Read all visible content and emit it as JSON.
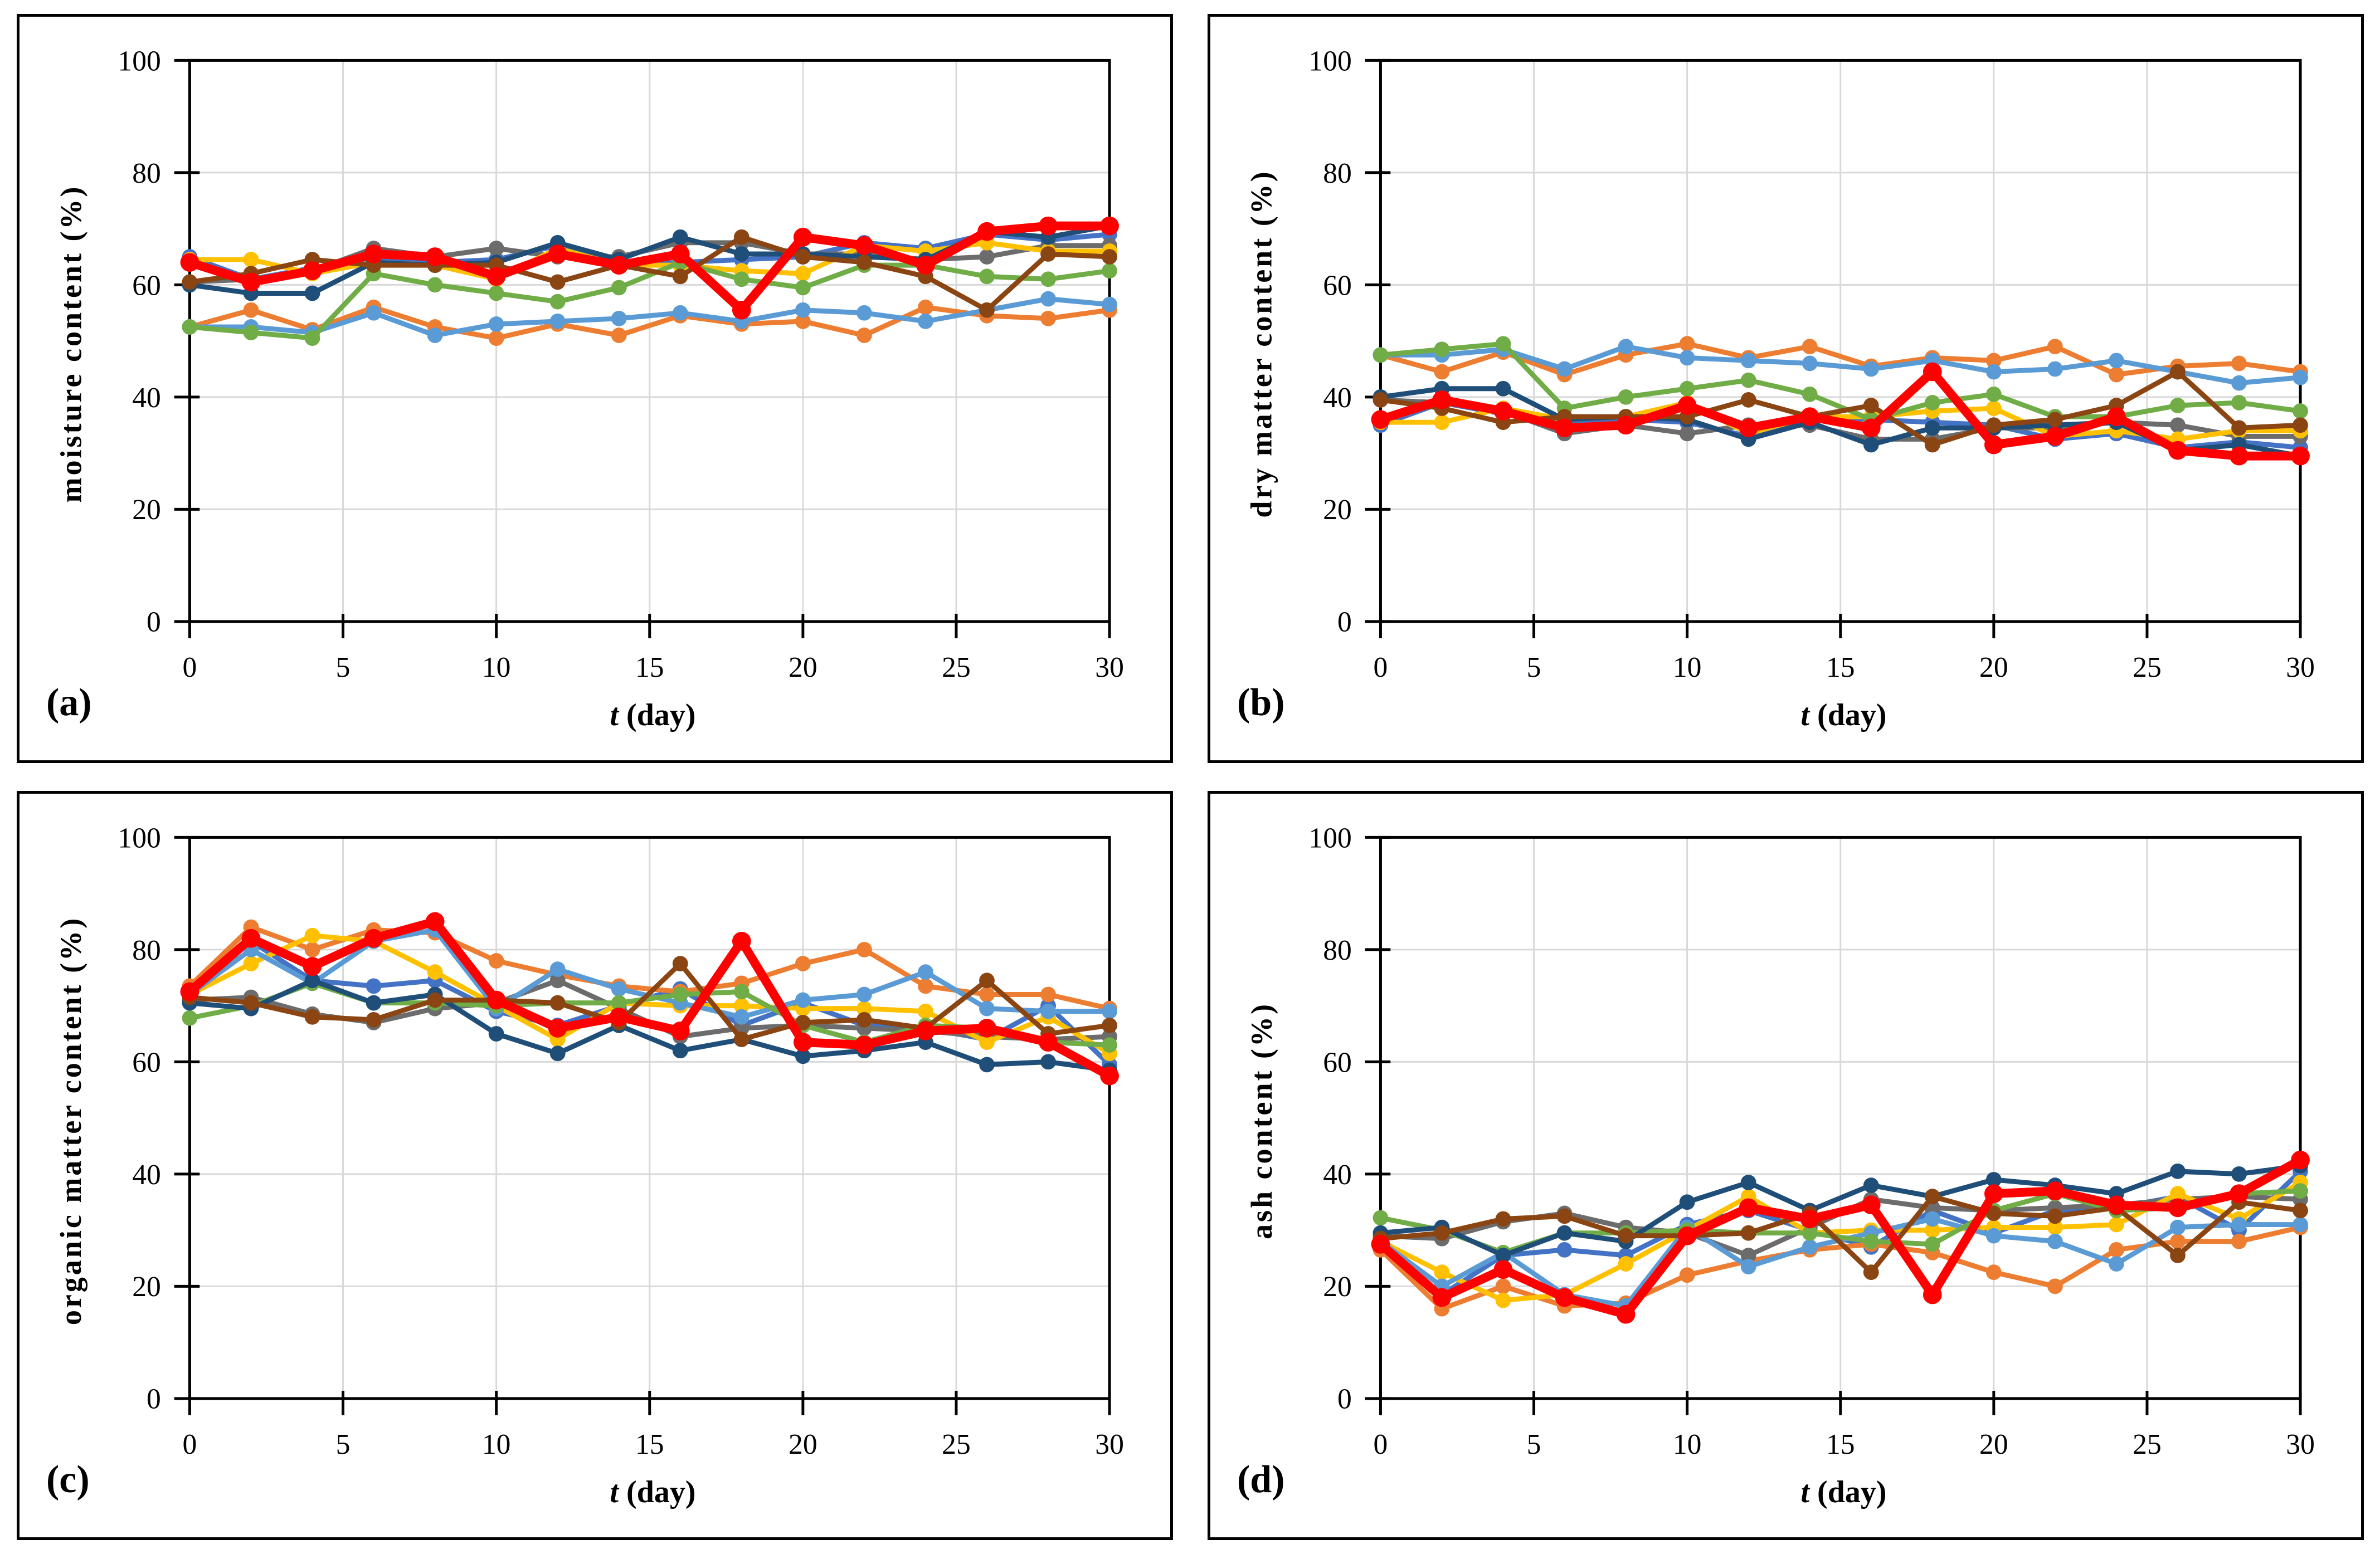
{
  "style": {
    "background": "#FFFFFF",
    "panel_border_color": "#000000",
    "axis_color": "#000000",
    "grid_color": "#D9D9D9"
  },
  "chart_data": [
    {
      "type": "line",
      "panel_label": "(a)",
      "ylabel": "moisture content (%)",
      "xlabel_italic": "t",
      "xlabel_rest": " (day)",
      "xlim": [
        0,
        30
      ],
      "ylim": [
        0,
        100
      ],
      "xticks": [
        0,
        5,
        10,
        15,
        20,
        25,
        30
      ],
      "yticks": [
        0,
        20,
        40,
        60,
        80,
        100
      ],
      "grid": true,
      "legend": "none",
      "x": [
        0,
        2,
        4,
        6,
        8,
        10,
        12,
        14,
        16,
        18,
        20,
        22,
        24,
        26,
        28,
        30
      ],
      "series": [
        {
          "color_name": "blue",
          "color": "#4472C4",
          "thick": false,
          "values": [
            65,
            61,
            63,
            64.5,
            64,
            64.5,
            67,
            63.5,
            64,
            64.5,
            65,
            67.5,
            66.5,
            69,
            68,
            69
          ]
        },
        {
          "color_name": "orange",
          "color": "#ED7D31",
          "thick": false,
          "values": [
            52.5,
            55.5,
            52,
            56,
            52.5,
            50.5,
            53,
            51,
            54.5,
            53,
            53.5,
            51,
            56,
            54.5,
            54,
            55.5
          ]
        },
        {
          "color_name": "gray",
          "color": "#6C6C6C",
          "thick": false,
          "values": [
            60.5,
            61,
            62.5,
            66.5,
            65,
            66.5,
            65,
            65,
            67.5,
            67.5,
            65.5,
            65.5,
            64.5,
            65,
            67,
            67
          ]
        },
        {
          "color_name": "gold",
          "color": "#FFC000",
          "thick": false,
          "values": [
            64.5,
            64.5,
            62,
            64,
            63.5,
            61,
            66.5,
            63.5,
            63.5,
            62.5,
            62,
            67,
            66,
            67.5,
            66,
            66
          ]
        },
        {
          "color_name": "lightblue",
          "color": "#5B9BD5",
          "thick": false,
          "values": [
            52.5,
            52.5,
            51.5,
            55,
            51,
            53,
            53.5,
            54,
            55,
            53.5,
            55.5,
            55,
            53.5,
            55.5,
            57.5,
            56.5
          ]
        },
        {
          "color_name": "green",
          "color": "#70AD47",
          "thick": false,
          "values": [
            52.5,
            51.5,
            50.5,
            62,
            60,
            58.5,
            57,
            59.5,
            64,
            61,
            59.5,
            63.5,
            63.5,
            61.5,
            61,
            62.5
          ]
        },
        {
          "color_name": "navy",
          "color": "#1F4E79",
          "thick": false,
          "values": [
            60,
            58.5,
            58.5,
            64,
            63.5,
            64,
            67.5,
            64.5,
            68.5,
            65.5,
            65.5,
            65,
            64.5,
            69.5,
            68.5,
            70.5
          ]
        },
        {
          "color_name": "brown",
          "color": "#8B4513",
          "thick": false,
          "values": [
            60.5,
            62,
            64.5,
            63.5,
            63.5,
            63.5,
            60.5,
            63.5,
            61.5,
            68.5,
            65,
            64,
            61.5,
            55.5,
            65.5,
            65
          ]
        },
        {
          "color_name": "red",
          "color": "#FF0000",
          "thick": true,
          "values": [
            64,
            60.5,
            62.5,
            65.5,
            65,
            61.5,
            65.5,
            63.5,
            65.5,
            55.5,
            68.5,
            67,
            63.5,
            69.5,
            70.5,
            70.5
          ]
        }
      ]
    },
    {
      "type": "line",
      "panel_label": "(b)",
      "ylabel": "dry matter content (%)",
      "xlabel_italic": "t",
      "xlabel_rest": " (day)",
      "xlim": [
        0,
        30
      ],
      "ylim": [
        0,
        100
      ],
      "xticks": [
        0,
        5,
        10,
        15,
        20,
        25,
        30
      ],
      "yticks": [
        0,
        20,
        40,
        60,
        80,
        100
      ],
      "grid": true,
      "legend": "none",
      "x": [
        0,
        2,
        4,
        6,
        8,
        10,
        12,
        14,
        16,
        18,
        20,
        22,
        24,
        26,
        28,
        30
      ],
      "series": [
        {
          "color_name": "blue",
          "color": "#4472C4",
          "thick": false,
          "values": [
            35,
            39,
            37,
            35.5,
            36,
            35.5,
            33,
            36.5,
            36,
            35.5,
            35,
            32.5,
            33.5,
            31,
            32,
            31
          ]
        },
        {
          "color_name": "orange",
          "color": "#ED7D31",
          "thick": false,
          "values": [
            47.5,
            44.5,
            48,
            44,
            47.5,
            49.5,
            47,
            49,
            45.5,
            47,
            46.5,
            49,
            44,
            45.5,
            46,
            44.5
          ]
        },
        {
          "color_name": "gray",
          "color": "#6C6C6C",
          "thick": false,
          "values": [
            39.5,
            39,
            37.5,
            33.5,
            35,
            33.5,
            35,
            35,
            32.5,
            32.5,
            34.5,
            34.5,
            35.5,
            35,
            33,
            33
          ]
        },
        {
          "color_name": "gold",
          "color": "#FFC000",
          "thick": false,
          "values": [
            35.5,
            35.5,
            38,
            36,
            36.5,
            39,
            33.5,
            36.5,
            36.5,
            37.5,
            38,
            33,
            34,
            32.5,
            34,
            34
          ]
        },
        {
          "color_name": "lightblue",
          "color": "#5B9BD5",
          "thick": false,
          "values": [
            47.5,
            47.5,
            48.5,
            45,
            49,
            47,
            46.5,
            46,
            45,
            46.5,
            44.5,
            45,
            46.5,
            44.5,
            42.5,
            43.5
          ]
        },
        {
          "color_name": "green",
          "color": "#70AD47",
          "thick": false,
          "values": [
            47.5,
            48.5,
            49.5,
            38,
            40,
            41.5,
            43,
            40.5,
            36,
            39,
            40.5,
            36.5,
            36.5,
            38.5,
            39,
            37.5
          ]
        },
        {
          "color_name": "navy",
          "color": "#1F4E79",
          "thick": false,
          "values": [
            40,
            41.5,
            41.5,
            36,
            36.5,
            36,
            32.5,
            35.5,
            31.5,
            34.5,
            34.5,
            35,
            35.5,
            30.5,
            31.5,
            29.5
          ]
        },
        {
          "color_name": "brown",
          "color": "#8B4513",
          "thick": false,
          "values": [
            39.5,
            38,
            35.5,
            36.5,
            36.5,
            36.5,
            39.5,
            36.5,
            38.5,
            31.5,
            35,
            36,
            38.5,
            44.5,
            34.5,
            35
          ]
        },
        {
          "color_name": "red",
          "color": "#FF0000",
          "thick": true,
          "values": [
            36,
            39.5,
            37.5,
            34.5,
            35,
            38.5,
            34.5,
            36.5,
            34.5,
            44.5,
            31.5,
            33,
            36.5,
            30.5,
            29.5,
            29.5
          ]
        }
      ]
    },
    {
      "type": "line",
      "panel_label": "(c)",
      "ylabel": "organic matter content (%)",
      "xlabel_italic": "t",
      "xlabel_rest": " (day)",
      "xlim": [
        0,
        30
      ],
      "ylim": [
        0,
        100
      ],
      "xticks": [
        0,
        5,
        10,
        15,
        20,
        25,
        30
      ],
      "yticks": [
        0,
        20,
        40,
        60,
        80,
        100
      ],
      "grid": true,
      "legend": "none",
      "x": [
        0,
        2,
        4,
        6,
        8,
        10,
        12,
        14,
        16,
        18,
        20,
        22,
        24,
        26,
        28,
        30
      ],
      "series": [
        {
          "color_name": "blue",
          "color": "#4472C4",
          "thick": false,
          "values": [
            72,
            81.5,
            74.5,
            73.5,
            74.5,
            69,
            66.5,
            70,
            73,
            66.5,
            70.5,
            66.5,
            66,
            64,
            70,
            59.5
          ]
        },
        {
          "color_name": "orange",
          "color": "#ED7D31",
          "thick": false,
          "values": [
            73.5,
            84,
            80,
            83.5,
            83,
            78,
            75.5,
            73.5,
            72.5,
            74,
            77.5,
            80,
            73.5,
            72,
            72,
            69.5
          ]
        },
        {
          "color_name": "gray",
          "color": "#6C6C6C",
          "thick": false,
          "values": [
            71,
            71.5,
            68.5,
            67,
            69.5,
            70.5,
            74.5,
            69.5,
            64.5,
            66,
            66.5,
            66,
            65.5,
            64.5,
            64,
            64.5
          ]
        },
        {
          "color_name": "gold",
          "color": "#FFC000",
          "thick": false,
          "values": [
            72,
            77.5,
            82.5,
            81.5,
            76,
            70,
            64,
            70.5,
            70,
            70,
            69.5,
            69.5,
            69,
            63.5,
            68,
            61.5
          ]
        },
        {
          "color_name": "lightblue",
          "color": "#5B9BD5",
          "thick": false,
          "values": [
            72,
            80,
            74,
            81.5,
            83.5,
            69.5,
            76.5,
            73,
            70.5,
            68,
            71,
            72,
            76,
            69.5,
            69,
            69
          ]
        },
        {
          "color_name": "green",
          "color": "#70AD47",
          "thick": false,
          "values": [
            67.8,
            70,
            74,
            70.5,
            70.5,
            70,
            70.5,
            70.5,
            72,
            72.5,
            66.5,
            63.5,
            66.5,
            66,
            63.5,
            63
          ]
        },
        {
          "color_name": "navy",
          "color": "#1F4E79",
          "thick": false,
          "values": [
            70.5,
            69.5,
            74.5,
            70.5,
            72,
            65,
            61.5,
            66.5,
            62,
            64,
            61,
            62,
            63.5,
            59.5,
            60,
            58.5
          ]
        },
        {
          "color_name": "brown",
          "color": "#8B4513",
          "thick": false,
          "values": [
            71.5,
            70.5,
            68,
            67.5,
            71,
            71,
            70.5,
            67,
            77.5,
            64,
            67,
            67.5,
            66,
            74.5,
            65,
            66.5
          ]
        },
        {
          "color_name": "red",
          "color": "#FF0000",
          "thick": true,
          "values": [
            72.5,
            82,
            77,
            82,
            85,
            71,
            66,
            68,
            65.5,
            81.5,
            63.5,
            63,
            65.5,
            66,
            63.5,
            57.5
          ]
        }
      ]
    },
    {
      "type": "line",
      "panel_label": "(d)",
      "ylabel": "ash content (%)",
      "xlabel_italic": "t",
      "xlabel_rest": " (day)",
      "xlim": [
        0,
        30
      ],
      "ylim": [
        0,
        100
      ],
      "xticks": [
        0,
        5,
        10,
        15,
        20,
        25,
        30
      ],
      "yticks": [
        0,
        20,
        40,
        60,
        80,
        100
      ],
      "grid": true,
      "legend": "none",
      "x": [
        0,
        2,
        4,
        6,
        8,
        10,
        12,
        14,
        16,
        18,
        20,
        22,
        24,
        26,
        28,
        30
      ],
      "series": [
        {
          "color_name": "blue",
          "color": "#4472C4",
          "thick": false,
          "values": [
            28,
            18.5,
            25.5,
            26.5,
            25.5,
            31,
            33.5,
            30,
            27,
            33.5,
            29.5,
            33.5,
            34,
            36,
            30,
            40.5
          ]
        },
        {
          "color_name": "orange",
          "color": "#ED7D31",
          "thick": false,
          "values": [
            26.5,
            16,
            20,
            16.5,
            17,
            22,
            24.5,
            26.5,
            27.5,
            26,
            22.5,
            20,
            26.5,
            28,
            28,
            30.5
          ]
        },
        {
          "color_name": "gray",
          "color": "#6C6C6C",
          "thick": false,
          "values": [
            29,
            28.5,
            31.5,
            33,
            30.5,
            29.5,
            25.5,
            30.5,
            35.5,
            34,
            33.5,
            34,
            34.5,
            35.5,
            36,
            35.5
          ]
        },
        {
          "color_name": "gold",
          "color": "#FFC000",
          "thick": false,
          "values": [
            28,
            22.5,
            17.5,
            18.5,
            24,
            30,
            36,
            29.5,
            30,
            30,
            30.5,
            30.5,
            31,
            36.5,
            32,
            38.5
          ]
        },
        {
          "color_name": "lightblue",
          "color": "#5B9BD5",
          "thick": false,
          "values": [
            28,
            20,
            26,
            18.5,
            16.5,
            30.5,
            23.5,
            27,
            29.5,
            32,
            29,
            28,
            24,
            30.5,
            31,
            31
          ]
        },
        {
          "color_name": "green",
          "color": "#70AD47",
          "thick": false,
          "values": [
            32.2,
            30,
            26,
            29.5,
            29.5,
            30,
            29.5,
            29.5,
            28,
            27.5,
            33.5,
            36.5,
            33.5,
            34,
            36.5,
            37
          ]
        },
        {
          "color_name": "navy",
          "color": "#1F4E79",
          "thick": false,
          "values": [
            29.5,
            30.5,
            25.5,
            29.5,
            28,
            35,
            38.5,
            33.5,
            38,
            36,
            39,
            38,
            36.5,
            40.5,
            40,
            41.5
          ]
        },
        {
          "color_name": "brown",
          "color": "#8B4513",
          "thick": false,
          "values": [
            28.5,
            29.5,
            32,
            32.5,
            29,
            29,
            29.5,
            33,
            22.5,
            36,
            33,
            32.5,
            34,
            25.5,
            35,
            33.5
          ]
        },
        {
          "color_name": "red",
          "color": "#FF0000",
          "thick": true,
          "values": [
            27.5,
            18,
            23,
            18,
            15,
            29,
            34,
            32,
            34.5,
            18.5,
            36.5,
            37,
            34.5,
            34,
            36.5,
            42.5
          ]
        }
      ]
    }
  ]
}
